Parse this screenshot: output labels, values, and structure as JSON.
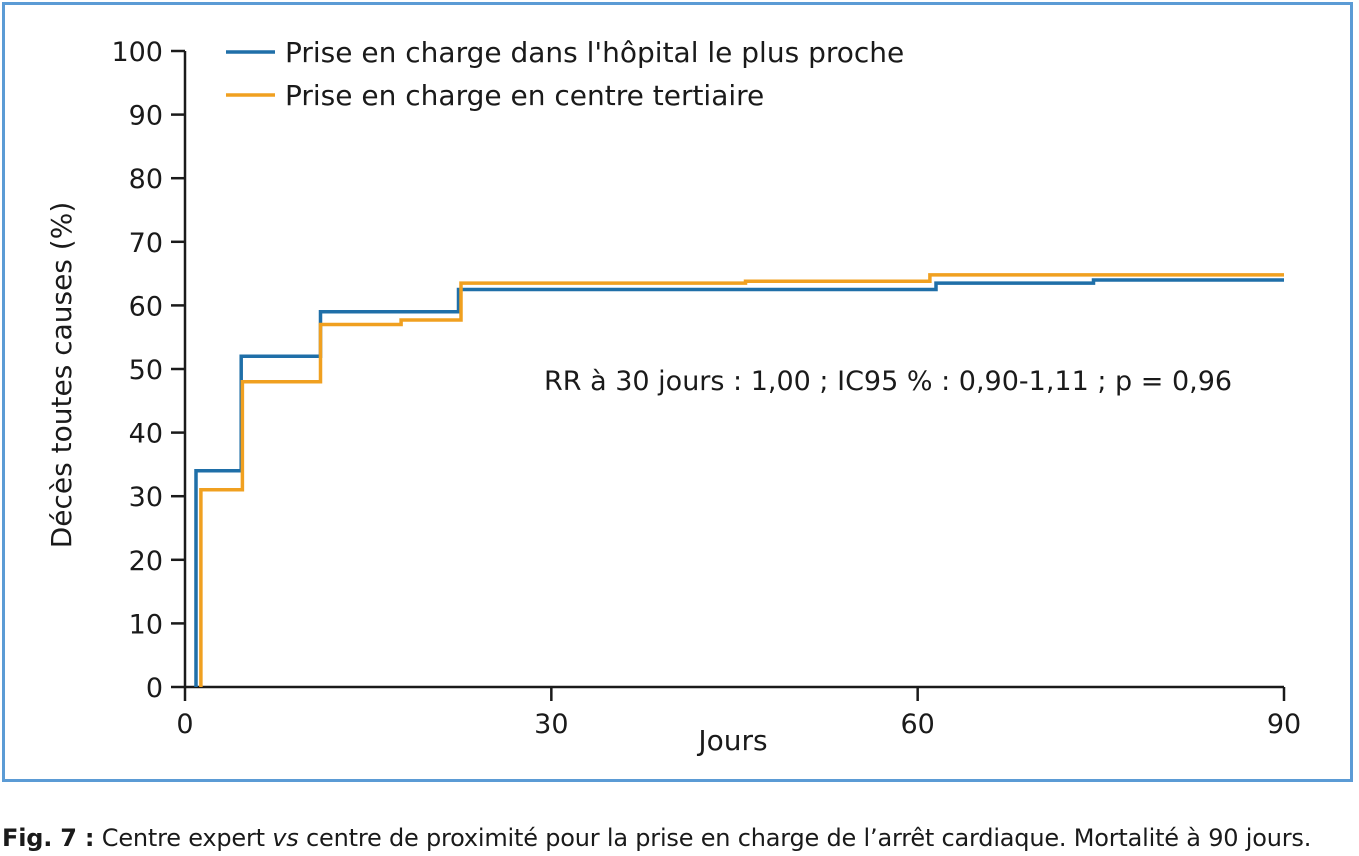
{
  "chart_data": {
    "type": "line",
    "step": true,
    "xlabel": "Jours",
    "ylabel": "Décès toutes causes (%)",
    "xlim": [
      0,
      90
    ],
    "ylim": [
      0,
      100
    ],
    "xticks": [
      0,
      30,
      60,
      90
    ],
    "yticks": [
      0,
      10,
      20,
      30,
      40,
      50,
      60,
      70,
      80,
      90,
      100
    ],
    "grid": false,
    "legend_position": "top-left",
    "annotation": "RR à 30 jours : 1,00 ; IC95 % : 0,90-1,11 ; p = 0,96",
    "series": [
      {
        "name": "Prise en charge dans l'hôpital le plus proche",
        "color": "#1f6fa8",
        "points": [
          [
            0.9,
            0
          ],
          [
            0.9,
            34
          ],
          [
            4.6,
            34
          ],
          [
            4.6,
            52
          ],
          [
            11.1,
            52
          ],
          [
            11.1,
            59
          ],
          [
            22.4,
            59
          ],
          [
            22.4,
            62.5
          ],
          [
            61.5,
            62.5
          ],
          [
            61.5,
            63.5
          ],
          [
            74.4,
            63.5
          ],
          [
            74.4,
            64
          ],
          [
            90,
            64
          ]
        ]
      },
      {
        "name": "Prise en charge en centre tertiaire",
        "color": "#f0a020",
        "points": [
          [
            1.3,
            0
          ],
          [
            1.3,
            31
          ],
          [
            4.7,
            31
          ],
          [
            4.7,
            48
          ],
          [
            11.1,
            48
          ],
          [
            11.1,
            57
          ],
          [
            17.7,
            57
          ],
          [
            17.7,
            57.7
          ],
          [
            22.6,
            57.7
          ],
          [
            22.6,
            63.5
          ],
          [
            45.9,
            63.5
          ],
          [
            45.9,
            63.8
          ],
          [
            61,
            63.8
          ],
          [
            61,
            64.8
          ],
          [
            90,
            64.8
          ]
        ]
      }
    ]
  },
  "caption": {
    "label": "Fig. 7 :",
    "text_before": " Centre expert ",
    "text_italic": "vs",
    "text_after": " centre de proximité pour la prise en charge de l’arrêt cardiaque. Mortalité à 90 jours."
  }
}
